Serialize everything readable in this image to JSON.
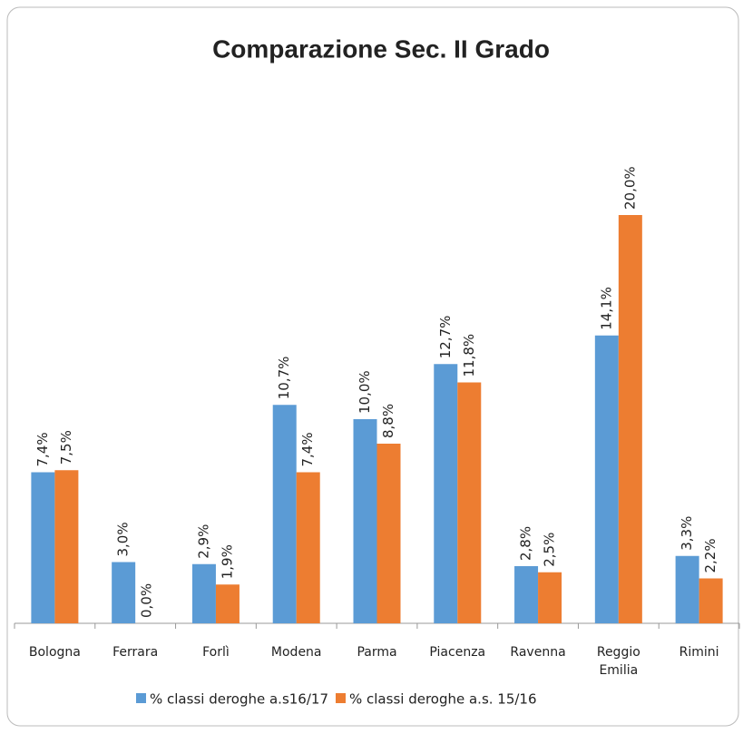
{
  "chart_data": {
    "type": "bar",
    "title": "Comparazione Sec. II Grado",
    "categories": [
      "Bologna",
      "Ferrara",
      "Forlì",
      "Modena",
      "Parma",
      "Piacenza",
      "Ravenna",
      "Reggio Emilia",
      "Rimini"
    ],
    "series": [
      {
        "name": "% classi deroghe a.s16/17",
        "color": "#5b9bd5",
        "values": [
          7.4,
          3.0,
          2.9,
          10.7,
          10.0,
          12.7,
          2.8,
          14.1,
          3.3
        ],
        "value_labels": [
          "7,4%",
          "3,0%",
          "2,9%",
          "10,7%",
          "10,0%",
          "12,7%",
          "2,8%",
          "14,1%",
          "3,3%"
        ]
      },
      {
        "name": "% classi deroghe a.s. 15/16",
        "color": "#ed7d31",
        "values": [
          7.5,
          0.0,
          1.9,
          7.4,
          8.8,
          11.8,
          2.5,
          20.0,
          2.2
        ],
        "value_labels": [
          "7,5%",
          "0,0%",
          "1,9%",
          "7,4%",
          "8,8%",
          "11,8%",
          "2,5%",
          "20,0%",
          "2,2%"
        ]
      }
    ],
    "ylim": [
      0,
      24
    ],
    "legend": "bottom"
  }
}
